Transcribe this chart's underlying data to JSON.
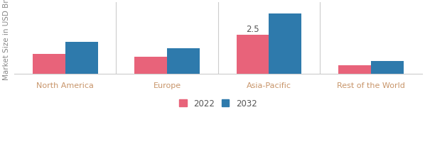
{
  "categories": [
    "North America",
    "Europe",
    "Asia-Pacific",
    "Rest of the World"
  ],
  "values_2022": [
    1.3,
    1.1,
    2.5,
    0.55
  ],
  "values_2032": [
    2.05,
    1.65,
    3.9,
    0.85
  ],
  "color_2022": "#e8637a",
  "color_2032": "#2e7aac",
  "ylabel": "Market Size in USD Bn",
  "legend_2022": "2022",
  "legend_2032": "2032",
  "annotation_value": "2.5",
  "annotation_region_index": 2,
  "bar_width": 0.32,
  "ylim": [
    0,
    4.6
  ],
  "background_color": "#ffffff",
  "label_fontsize": 7.5,
  "tick_fontsize": 8,
  "legend_fontsize": 8.5,
  "annotation_fontsize": 8.5,
  "xtick_color": "#c8956a",
  "separator_color": "#cccccc",
  "ylabel_color": "#888888"
}
